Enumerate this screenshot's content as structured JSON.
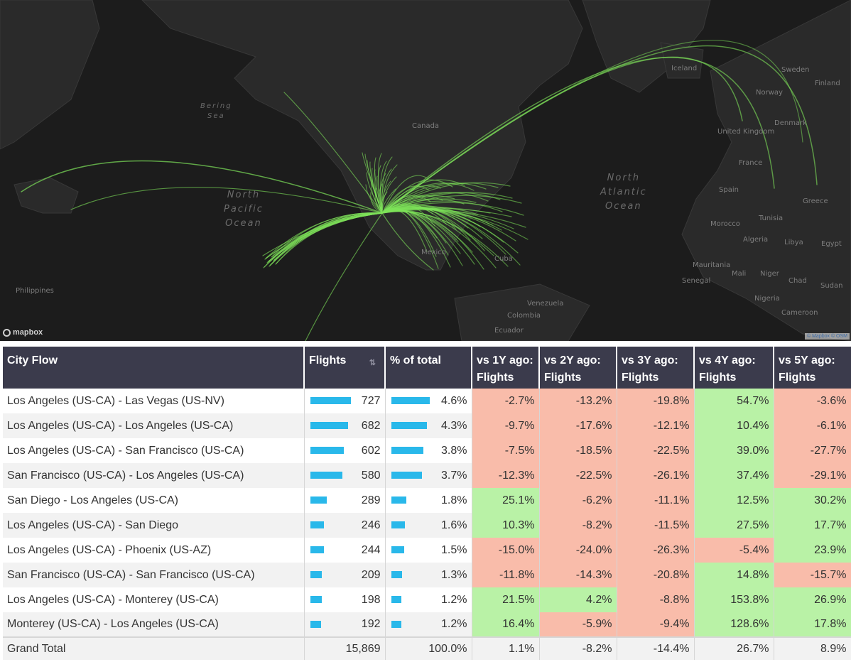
{
  "map": {
    "ocean_labels": [
      {
        "name": "north-pacific",
        "lines": [
          "North",
          "Pacific",
          "Ocean"
        ]
      },
      {
        "name": "north-atlantic",
        "lines": [
          "North",
          "Atlantic",
          "Ocean"
        ]
      },
      {
        "name": "bering-sea",
        "lines": [
          "Bering",
          "Sea"
        ]
      }
    ],
    "place_labels": [
      "Canada",
      "Iceland",
      "Mexico",
      "Cuba",
      "Philippines",
      "Norway",
      "Sweden",
      "Finland",
      "Denmark",
      "United Kingdom",
      "France",
      "Spain",
      "Greece",
      "Morocco",
      "Algeria",
      "Libya",
      "Egypt",
      "Tunisia",
      "Mauritania",
      "Mali",
      "Niger",
      "Chad",
      "Sudan",
      "Senegal",
      "Nigeria",
      "Cameroon",
      "Colombia",
      "Venezuela",
      "Ecuador"
    ],
    "logo": "mapbox",
    "attribution": "© Mapbox © OSM",
    "arc_color": "#7ee35a"
  },
  "table": {
    "headers": [
      "City Flow",
      "Flights",
      "% of total",
      "vs 1Y ago: Flights",
      "vs 2Y ago: Flights",
      "vs 3Y ago: Flights",
      "vs 4Y ago: Flights",
      "vs 5Y ago: Flights"
    ],
    "colors": {
      "negative": "#f9bcaa",
      "positive": "#b9f2a6",
      "bar": "#29b8ea",
      "header": "#3b3b4c"
    },
    "rows": [
      {
        "flow": "Los Angeles (US-CA) - Las Vegas (US-NV)",
        "flights": "727",
        "flights_value": 727,
        "pct": "4.6%",
        "pct_value": 4.6,
        "changes": [
          "-2.7%",
          "-13.2%",
          "-19.8%",
          "54.7%",
          "-3.6%"
        ]
      },
      {
        "flow": "Los Angeles (US-CA) - Los Angeles (US-CA)",
        "flights": "682",
        "flights_value": 682,
        "pct": "4.3%",
        "pct_value": 4.3,
        "changes": [
          "-9.7%",
          "-17.6%",
          "-12.1%",
          "10.4%",
          "-6.1%"
        ]
      },
      {
        "flow": "Los Angeles (US-CA) - San Francisco (US-CA)",
        "flights": "602",
        "flights_value": 602,
        "pct": "3.8%",
        "pct_value": 3.8,
        "changes": [
          "-7.5%",
          "-18.5%",
          "-22.5%",
          "39.0%",
          "-27.7%"
        ]
      },
      {
        "flow": "San Francisco (US-CA) - Los Angeles (US-CA)",
        "flights": "580",
        "flights_value": 580,
        "pct": "3.7%",
        "pct_value": 3.7,
        "changes": [
          "-12.3%",
          "-22.5%",
          "-26.1%",
          "37.4%",
          "-29.1%"
        ]
      },
      {
        "flow": "San Diego - Los Angeles (US-CA)",
        "flights": "289",
        "flights_value": 289,
        "pct": "1.8%",
        "pct_value": 1.8,
        "changes": [
          "25.1%",
          "-6.2%",
          "-11.1%",
          "12.5%",
          "30.2%"
        ]
      },
      {
        "flow": "Los Angeles (US-CA) - San Diego",
        "flights": "246",
        "flights_value": 246,
        "pct": "1.6%",
        "pct_value": 1.6,
        "changes": [
          "10.3%",
          "-8.2%",
          "-11.5%",
          "27.5%",
          "17.7%"
        ]
      },
      {
        "flow": "Los Angeles (US-CA) - Phoenix (US-AZ)",
        "flights": "244",
        "flights_value": 244,
        "pct": "1.5%",
        "pct_value": 1.5,
        "changes": [
          "-15.0%",
          "-24.0%",
          "-26.3%",
          "-5.4%",
          "23.9%"
        ]
      },
      {
        "flow": "San Francisco (US-CA) - San Francisco (US-CA)",
        "flights": "209",
        "flights_value": 209,
        "pct": "1.3%",
        "pct_value": 1.3,
        "changes": [
          "-11.8%",
          "-14.3%",
          "-20.8%",
          "14.8%",
          "-15.7%"
        ]
      },
      {
        "flow": "Los Angeles (US-CA) - Monterey (US-CA)",
        "flights": "198",
        "flights_value": 198,
        "pct": "1.2%",
        "pct_value": 1.2,
        "changes": [
          "21.5%",
          "4.2%",
          "-8.8%",
          "153.8%",
          "26.9%"
        ]
      },
      {
        "flow": "Monterey (US-CA) - Los Angeles (US-CA)",
        "flights": "192",
        "flights_value": 192,
        "pct": "1.2%",
        "pct_value": 1.2,
        "changes": [
          "16.4%",
          "-5.9%",
          "-9.4%",
          "128.6%",
          "17.8%"
        ]
      }
    ],
    "total": {
      "label": "Grand Total",
      "flights": "15,869",
      "pct": "100.0%",
      "changes": [
        "1.1%",
        "-8.2%",
        "-14.4%",
        "26.7%",
        "8.9%"
      ]
    }
  }
}
